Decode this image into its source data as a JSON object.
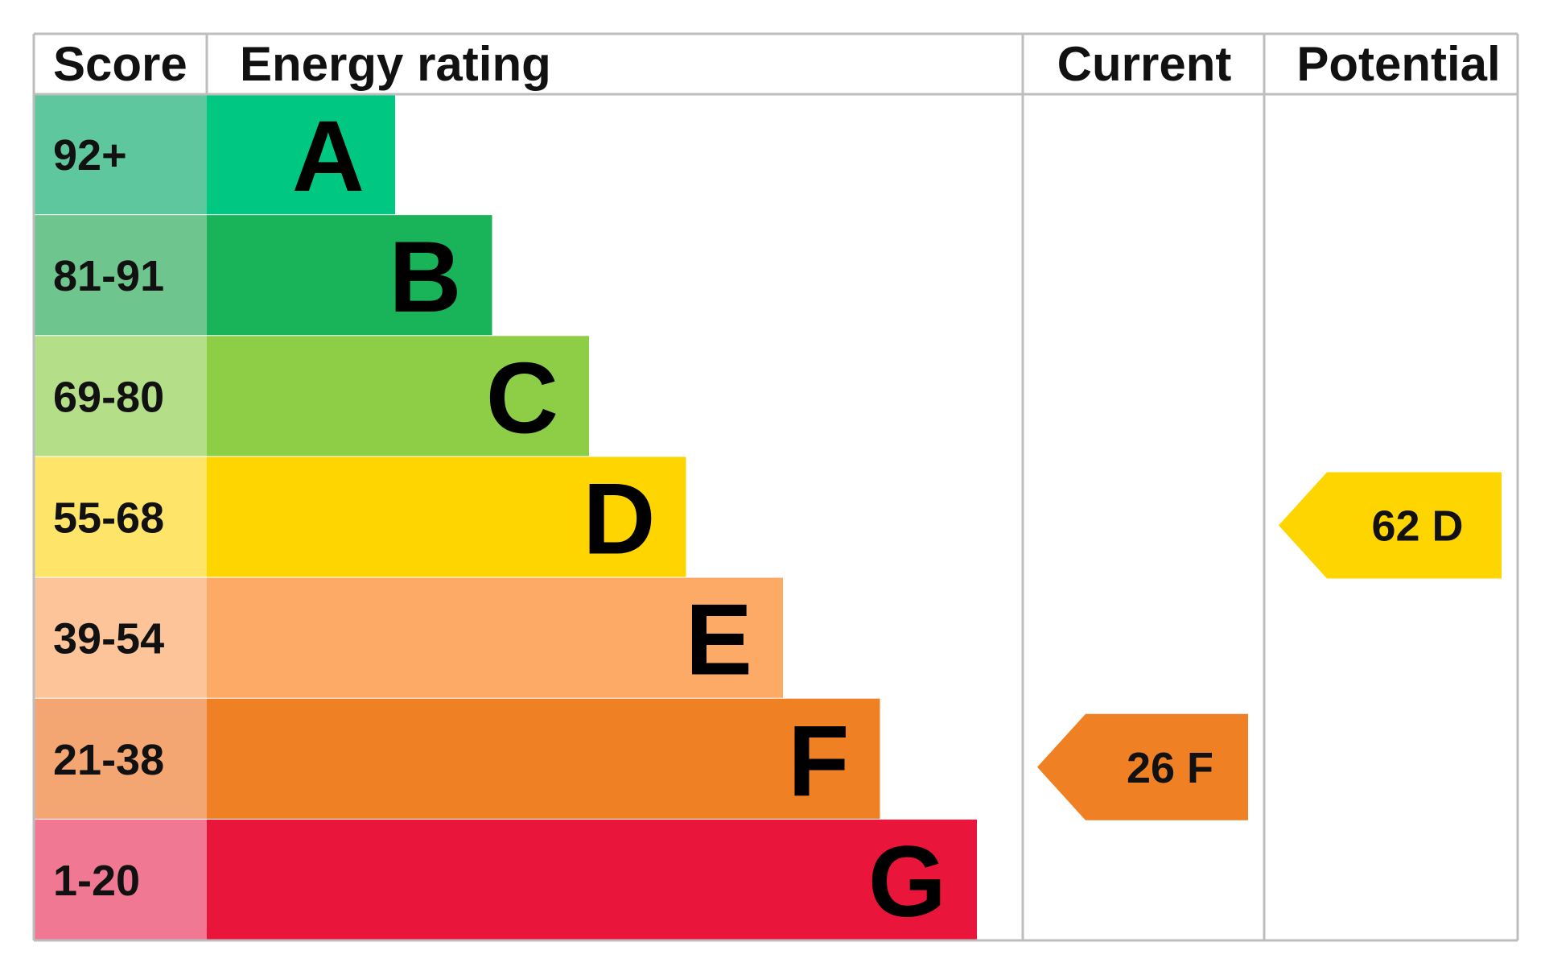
{
  "chart_data": {
    "type": "bar",
    "columns": {
      "score": "Score",
      "rating": "Energy rating",
      "current": "Current",
      "potential": "Potential"
    },
    "bands": [
      {
        "letter": "A",
        "range": "92+",
        "color": "#00c781",
        "score_color": "#5ec79e"
      },
      {
        "letter": "B",
        "range": "81-91",
        "color": "#19b459",
        "score_color": "#6fc58e"
      },
      {
        "letter": "C",
        "range": "69-80",
        "color": "#8dce46",
        "score_color": "#b5de88"
      },
      {
        "letter": "D",
        "range": "55-68",
        "color": "#ffd500",
        "score_color": "#ffe46a"
      },
      {
        "letter": "E",
        "range": "39-54",
        "color": "#fcaa65",
        "score_color": "#fdc49a"
      },
      {
        "letter": "F",
        "range": "21-38",
        "color": "#ef8023",
        "score_color": "#f4a672"
      },
      {
        "letter": "G",
        "range": "1-20",
        "color": "#e9153b",
        "score_color": "#f07892"
      }
    ],
    "current": {
      "value": 26,
      "band": "F",
      "label": "26 F",
      "color": "#ef8023"
    },
    "potential": {
      "value": 62,
      "band": "D",
      "label": "62 D",
      "color": "#ffd500"
    }
  }
}
